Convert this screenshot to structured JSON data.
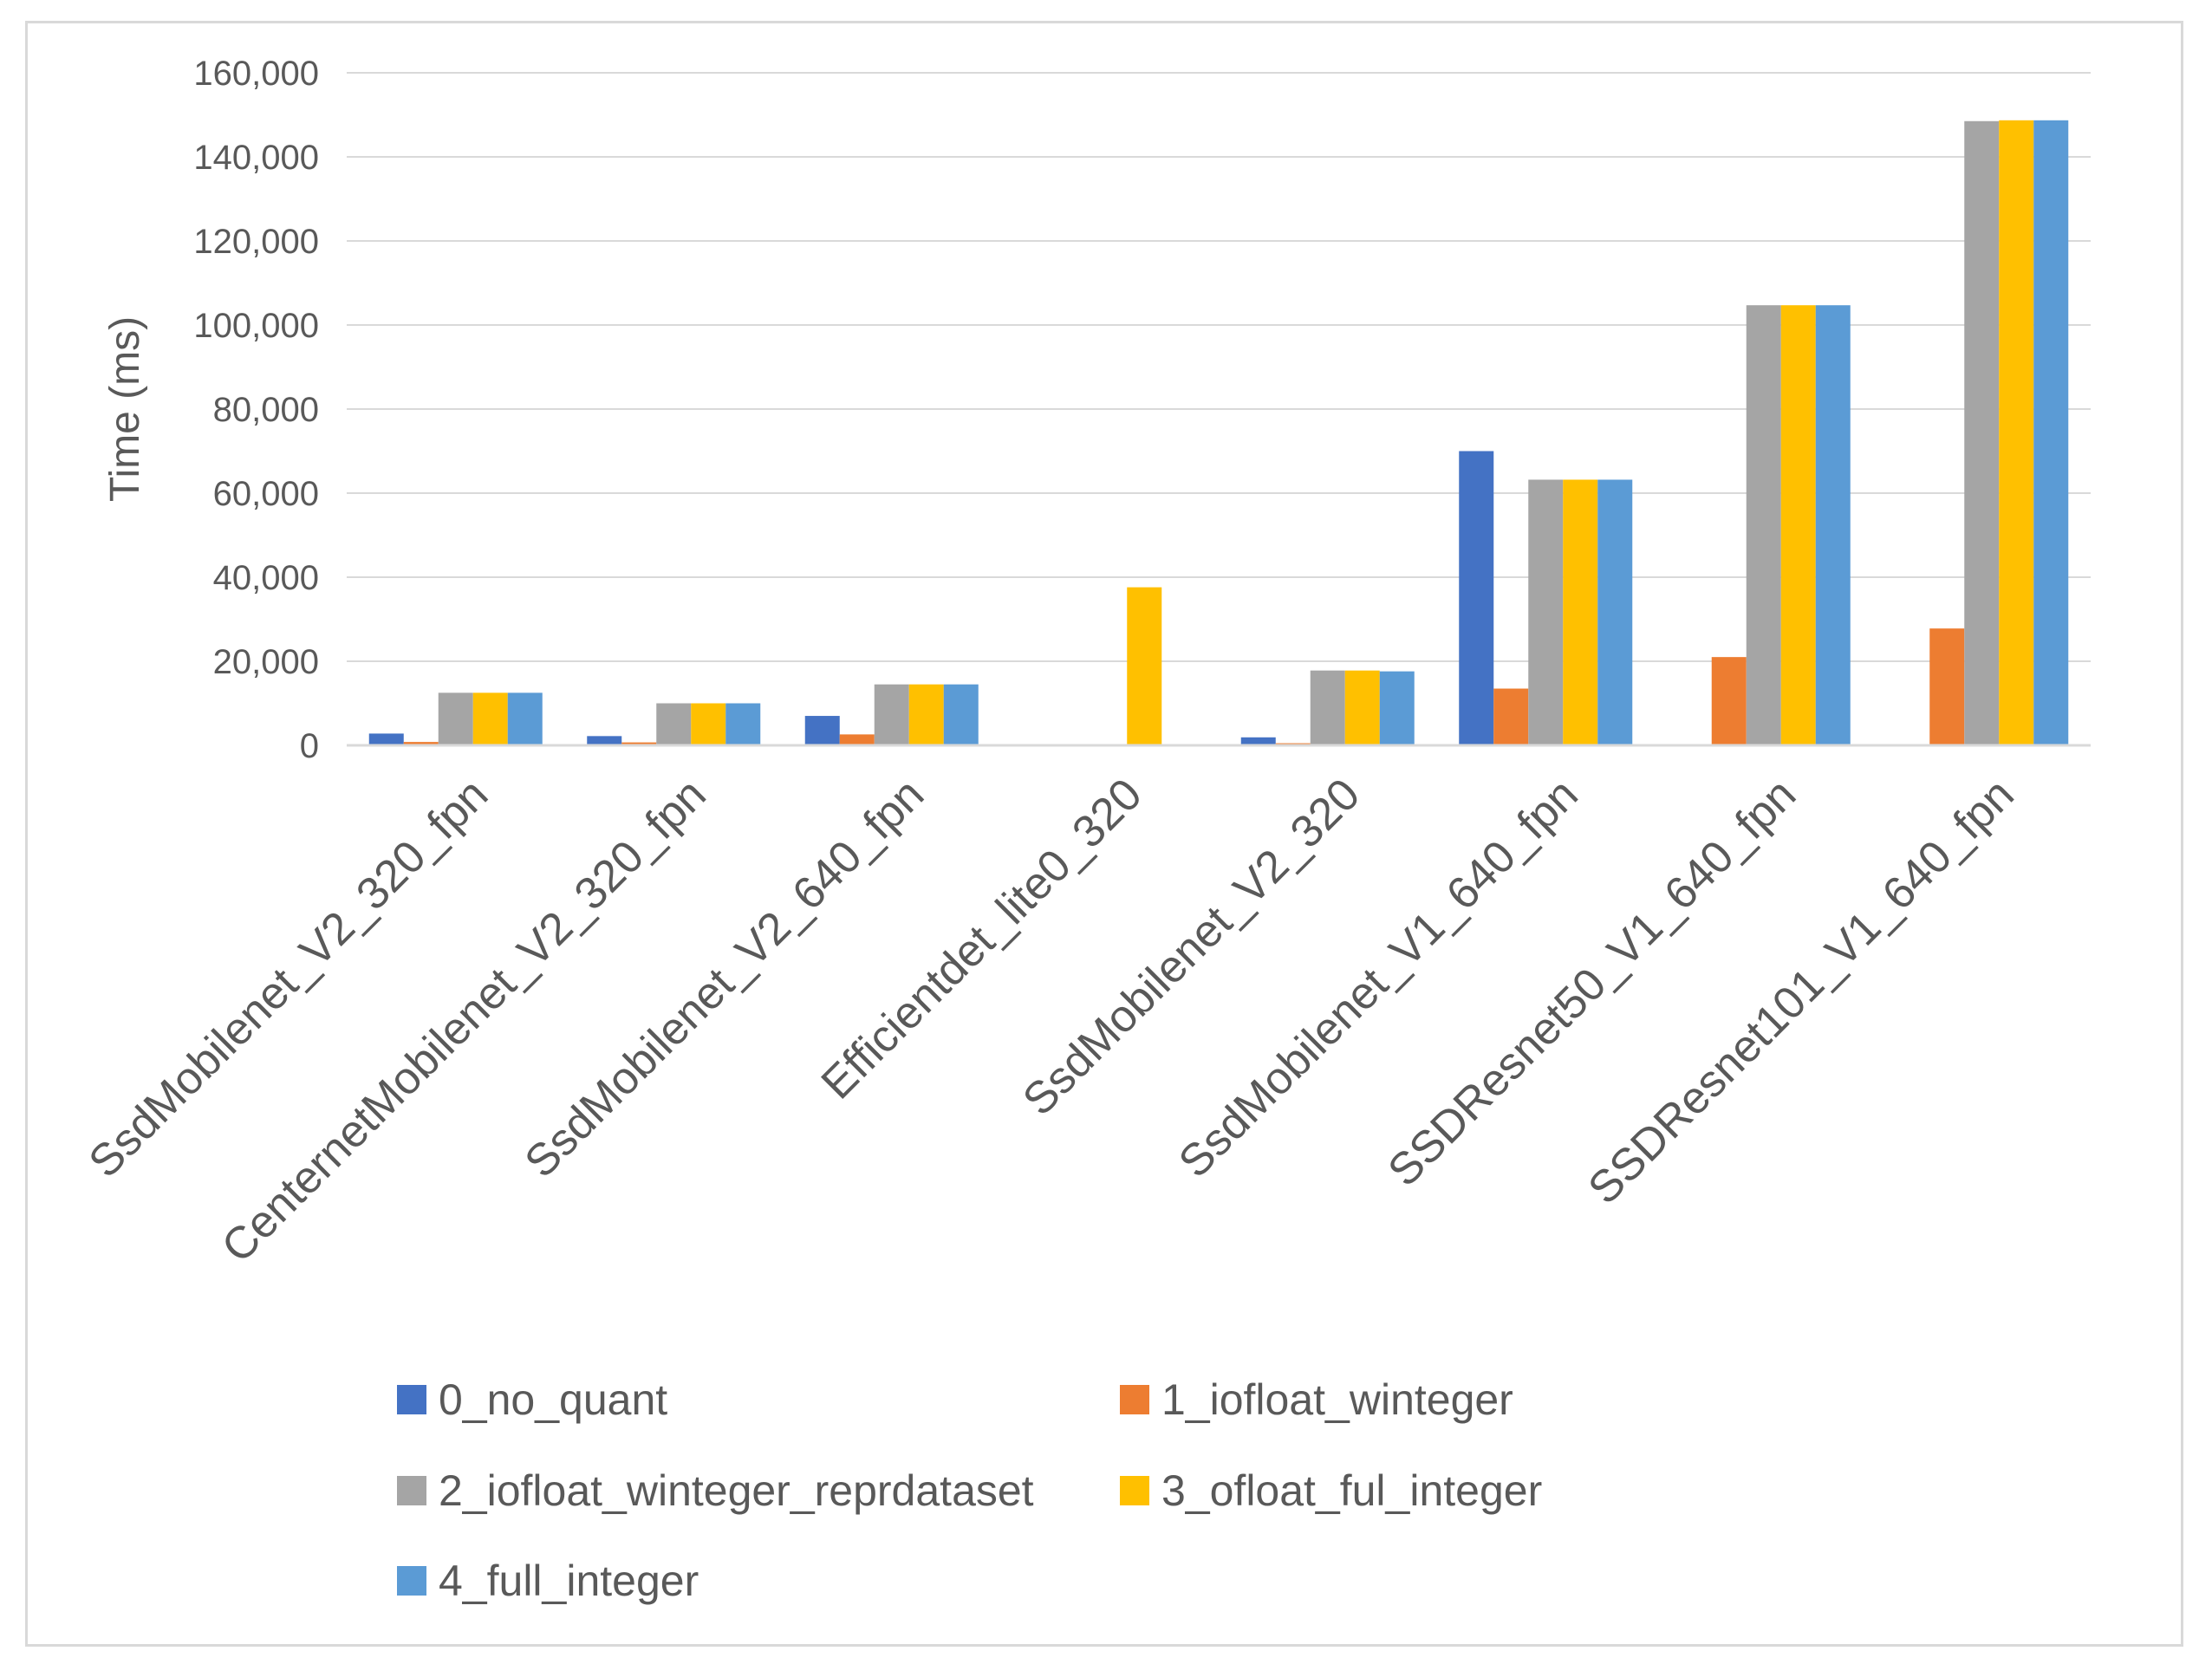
{
  "chart_data": {
    "type": "bar",
    "title": "",
    "xlabel": "",
    "ylabel": "Time (ms)",
    "ylim": [
      0,
      160000
    ],
    "yticks": [
      0,
      20000,
      40000,
      60000,
      80000,
      100000,
      120000,
      140000,
      160000
    ],
    "ytick_labels": [
      "0",
      "20,000",
      "40,000",
      "60,000",
      "80,000",
      "100,000",
      "120,000",
      "140,000",
      "160,000"
    ],
    "grid": true,
    "legend_position": "bottom",
    "categories": [
      "SsdMobilenet_V2_320_fpn",
      "CenternetMobilenet_V2_320_fpn",
      "SsdMobilenet_V2_640_fpn",
      "Efficientdet_lite0_320",
      "SsdMobilenet_V2_320",
      "SsdMobilenet_V1_640_fpn",
      "SSDResnet50_V1_640_fpn",
      "SSDResnet101_V1_640_fpn"
    ],
    "series": [
      {
        "name": "0_no_quant",
        "color": "#4472c4",
        "values": [
          2800,
          2200,
          7000,
          0,
          1900,
          70000,
          0,
          0
        ]
      },
      {
        "name": "1_iofloat_winteger",
        "color": "#ed7d31",
        "values": [
          800,
          700,
          2600,
          0,
          500,
          13500,
          21000,
          27800
        ]
      },
      {
        "name": "2_iofloat_winteger_reprdataset",
        "color": "#a5a5a5",
        "values": [
          12500,
          10000,
          14500,
          0,
          17800,
          63200,
          104700,
          148500
        ]
      },
      {
        "name": "3_ofloat_ful_integer",
        "color": "#ffc000",
        "values": [
          12500,
          10000,
          14500,
          37600,
          17800,
          63200,
          104700,
          148700
        ]
      },
      {
        "name": "4_full_integer",
        "color": "#5b9bd5",
        "values": [
          12500,
          10000,
          14500,
          0,
          17600,
          63200,
          104700,
          148700
        ]
      }
    ]
  }
}
